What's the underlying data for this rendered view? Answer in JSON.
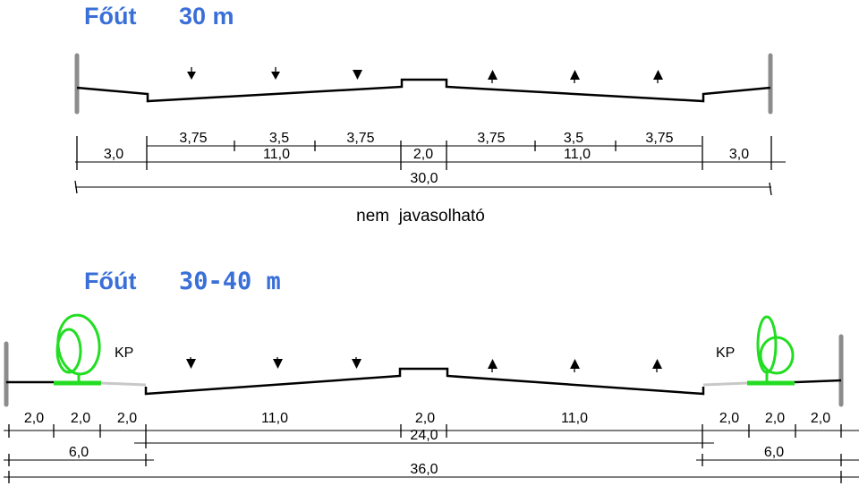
{
  "section1": {
    "title_word": "Főút",
    "title_width": "30 m",
    "lane_widths": [
      "3,75",
      "3,5",
      "3,75",
      "3,75",
      "3,5",
      "3,75"
    ],
    "side_left": "3,0",
    "carriageway_left": "11,0",
    "median": "2,0",
    "carriageway_right": "11,0",
    "side_right": "3,0",
    "total": "30,0",
    "note": "nem  javasolható"
  },
  "section2": {
    "title_word": "Főút",
    "title_width": "30-40 m",
    "kp_left": "KP",
    "kp_right": "KP",
    "left_parts": [
      "2,0",
      "2,0",
      "2,0"
    ],
    "carriageway_left": "11,0",
    "median": "2,0",
    "carriageway_right": "11,0",
    "right_parts": [
      "2,0",
      "2,0",
      "2,0"
    ],
    "middle_total": "24,0",
    "left_total": "6,0",
    "right_total": "6,0",
    "total": "36,0"
  },
  "colors": {
    "title": "#3a6fd8",
    "tree": "#22dd22",
    "wall": "#8c8c8c"
  }
}
